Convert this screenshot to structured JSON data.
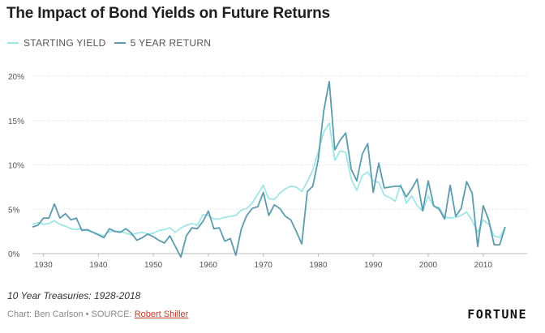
{
  "chart_data": {
    "type": "line",
    "title": "The Impact of Bond Yields on Future Returns",
    "subtitle": "",
    "xlabel": "",
    "ylabel": "",
    "xlim": [
      1928,
      2018
    ],
    "ylim": [
      0,
      20
    ],
    "y_ticks": [
      0,
      5,
      10,
      15,
      20
    ],
    "y_tick_labels": [
      "0%",
      "5%",
      "10%",
      "15%",
      "20%"
    ],
    "x_ticks": [
      1930,
      1940,
      1950,
      1960,
      1970,
      1980,
      1990,
      2000,
      2010
    ],
    "x_tick_labels": [
      "1930",
      "1940",
      "1950",
      "1960",
      "1970",
      "1980",
      "1990",
      "2000",
      "2010"
    ],
    "grid": "horizontal dotted",
    "legend_position": "top-left",
    "series": [
      {
        "name": "STARTING YIELD",
        "color": "#9fe6e6",
        "x": [
          1928,
          1929,
          1930,
          1931,
          1932,
          1933,
          1934,
          1935,
          1936,
          1937,
          1938,
          1939,
          1940,
          1941,
          1942,
          1943,
          1944,
          1945,
          1946,
          1947,
          1948,
          1949,
          1950,
          1951,
          1952,
          1953,
          1954,
          1955,
          1956,
          1957,
          1958,
          1959,
          1960,
          1961,
          1962,
          1963,
          1964,
          1965,
          1966,
          1967,
          1968,
          1969,
          1970,
          1971,
          1972,
          1973,
          1974,
          1975,
          1976,
          1977,
          1978,
          1979,
          1980,
          1981,
          1982,
          1983,
          1984,
          1985,
          1986,
          1987,
          1988,
          1989,
          1990,
          1991,
          1992,
          1993,
          1994,
          1995,
          1996,
          1997,
          1998,
          1999,
          2000,
          2001,
          2002,
          2003,
          2004,
          2005,
          2006,
          2007,
          2008,
          2009,
          2010,
          2011,
          2012,
          2013,
          2014
        ],
        "values": [
          3.3,
          3.5,
          3.3,
          3.4,
          3.7,
          3.3,
          3.1,
          2.8,
          2.7,
          2.8,
          2.6,
          2.4,
          2.2,
          2.0,
          2.5,
          2.5,
          2.5,
          2.3,
          2.1,
          2.3,
          2.4,
          2.2,
          2.3,
          2.6,
          2.7,
          2.9,
          2.4,
          2.9,
          3.2,
          3.4,
          3.2,
          4.4,
          4.3,
          3.9,
          3.9,
          4.1,
          4.2,
          4.3,
          4.9,
          5.1,
          5.7,
          6.7,
          7.7,
          6.2,
          6.1,
          6.8,
          7.3,
          7.6,
          7.5,
          7.0,
          8.1,
          9.4,
          11.5,
          13.7,
          14.7,
          10.5,
          11.6,
          11.4,
          8.4,
          7.1,
          8.8,
          9.2,
          8.2,
          8.0,
          6.6,
          6.3,
          5.9,
          7.8,
          5.7,
          6.5,
          5.4,
          4.8,
          6.5,
          5.3,
          5.2,
          4.1,
          4.0,
          4.1,
          4.3,
          4.7,
          3.7,
          2.4,
          3.8,
          3.3,
          2.0,
          1.8,
          3.0
        ]
      },
      {
        "name": "5 YEAR RETURN",
        "color": "#5a9cae",
        "x": [
          1928,
          1929,
          1930,
          1931,
          1932,
          1933,
          1934,
          1935,
          1936,
          1937,
          1938,
          1939,
          1940,
          1941,
          1942,
          1943,
          1944,
          1945,
          1946,
          1947,
          1948,
          1949,
          1950,
          1951,
          1952,
          1953,
          1954,
          1955,
          1956,
          1957,
          1958,
          1959,
          1960,
          1961,
          1962,
          1963,
          1964,
          1965,
          1966,
          1967,
          1968,
          1969,
          1970,
          1971,
          1972,
          1973,
          1974,
          1975,
          1976,
          1977,
          1978,
          1979,
          1980,
          1981,
          1982,
          1983,
          1984,
          1985,
          1986,
          1987,
          1988,
          1989,
          1990,
          1991,
          1992,
          1993,
          1994,
          1995,
          1996,
          1997,
          1998,
          1999,
          2000,
          2001,
          2002,
          2003,
          2004,
          2005,
          2006,
          2007,
          2008,
          2009,
          2010,
          2011,
          2012,
          2013,
          2014
        ],
        "values": [
          3.0,
          3.2,
          4.0,
          4.0,
          5.6,
          4.0,
          4.5,
          3.8,
          4.0,
          2.6,
          2.7,
          2.4,
          2.1,
          1.8,
          2.8,
          2.5,
          2.4,
          2.8,
          2.3,
          1.5,
          1.8,
          2.2,
          1.9,
          1.5,
          1.2,
          2.0,
          0.8,
          -0.4,
          2.0,
          2.9,
          2.8,
          3.6,
          4.8,
          2.8,
          2.9,
          1.4,
          1.7,
          -0.2,
          2.8,
          4.3,
          5.1,
          5.3,
          6.9,
          4.3,
          5.5,
          5.1,
          4.2,
          3.8,
          2.5,
          1.1,
          7.0,
          7.6,
          10.6,
          16.1,
          19.4,
          11.7,
          12.8,
          13.6,
          9.5,
          8.2,
          11.2,
          12.4,
          6.9,
          10.2,
          7.4,
          7.5,
          7.6,
          7.6,
          6.4,
          7.3,
          8.4,
          4.8,
          8.2,
          5.4,
          5.0,
          3.9,
          7.7,
          4.2,
          5.1,
          8.1,
          6.8,
          0.8,
          5.4,
          3.8,
          1.0,
          1.0,
          3.0
        ]
      }
    ]
  },
  "footnote": "10 Year Treasuries: 1928-2018",
  "credit": {
    "prefix": "Chart: Ben Carlson • SOURCE: ",
    "link": "Robert Shiller"
  },
  "brand": "FORTUNE"
}
